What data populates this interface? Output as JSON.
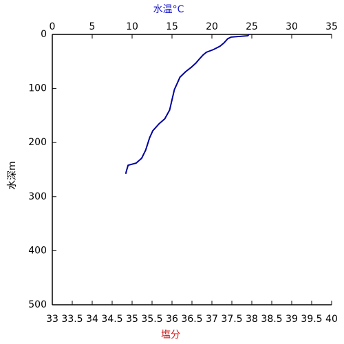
{
  "chart_data": {
    "type": "line",
    "x_label": "水温°C",
    "x2_label": "塩分",
    "y_label": "水深m",
    "x": [
      24.65,
      24.5,
      22.4,
      21.98,
      21.5,
      21.0,
      20.2,
      19.3,
      18.9,
      18.4,
      18.0,
      17.4,
      16.7,
      16.0,
      15.7,
      15.3,
      15.0,
      14.7,
      14.1,
      13.4,
      12.6,
      12.2,
      11.7,
      11.2,
      10.5,
      9.5,
      9.3,
      9.2
    ],
    "values": [
      0,
      2.5,
      5,
      8,
      16,
      22,
      28,
      33,
      38,
      46,
      53,
      61,
      69,
      79,
      89,
      102,
      121,
      140,
      156,
      165,
      178,
      191,
      214,
      229,
      238,
      242,
      252,
      258
    ],
    "color": "#00009c",
    "xlim": [
      0,
      35
    ],
    "xticks": [
      0,
      5,
      10,
      15,
      20,
      25,
      30,
      35
    ],
    "x2lim": [
      33,
      40
    ],
    "x2ticks": [
      33,
      33.5,
      34,
      34.5,
      35,
      35.5,
      36,
      36.5,
      37,
      37.5,
      38,
      38.5,
      39,
      39.5,
      40
    ],
    "ylim": [
      0,
      500
    ],
    "yticks": [
      0,
      100,
      200,
      300,
      400,
      500
    ],
    "y_inverted": true
  }
}
